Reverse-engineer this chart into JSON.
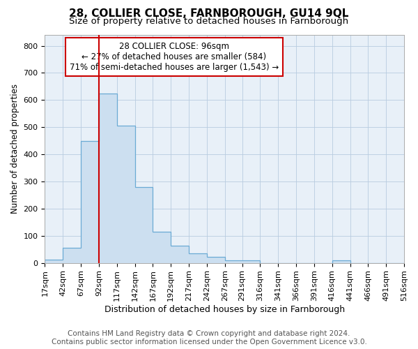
{
  "title": "28, COLLIER CLOSE, FARNBOROUGH, GU14 9QL",
  "subtitle": "Size of property relative to detached houses in Farnborough",
  "xlabel": "Distribution of detached houses by size in Farnborough",
  "ylabel": "Number of detached properties",
  "bar_color": "#ccdff0",
  "bar_edge_color": "#6aaad4",
  "background_color": "#ffffff",
  "plot_bg_color": "#e8f0f8",
  "grid_color": "#b8cce0",
  "annotation_box_color": "#cc0000",
  "vline_color": "#cc0000",
  "vline_x": 92,
  "annotation_text": "28 COLLIER CLOSE: 96sqm\n← 27% of detached houses are smaller (584)\n71% of semi-detached houses are larger (1,543) →",
  "bin_edges": [
    17,
    42,
    67,
    92,
    117,
    142,
    167,
    192,
    217,
    242,
    267,
    291,
    316,
    341,
    366,
    391,
    416,
    441,
    466,
    491,
    516
  ],
  "bar_heights": [
    12,
    55,
    450,
    625,
    505,
    280,
    115,
    62,
    35,
    22,
    10,
    8,
    0,
    0,
    0,
    0,
    8,
    0,
    0,
    0
  ],
  "ylim": [
    0,
    840
  ],
  "yticks": [
    0,
    100,
    200,
    300,
    400,
    500,
    600,
    700,
    800
  ],
  "footnote": "Contains HM Land Registry data © Crown copyright and database right 2024.\nContains public sector information licensed under the Open Government Licence v3.0.",
  "title_fontsize": 11,
  "subtitle_fontsize": 9.5,
  "xlabel_fontsize": 9,
  "ylabel_fontsize": 8.5,
  "tick_fontsize": 8,
  "footnote_fontsize": 7.5
}
